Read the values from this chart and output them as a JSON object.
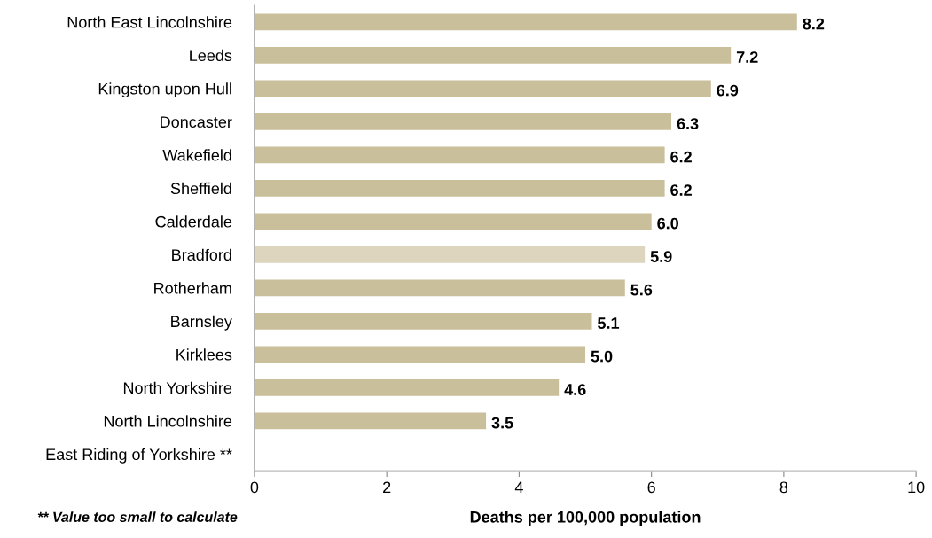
{
  "chart_data": {
    "type": "bar",
    "orientation": "horizontal",
    "categories": [
      "North East Lincolnshire",
      "Leeds",
      "Kingston upon Hull",
      "Doncaster",
      "Wakefield",
      "Sheffield",
      "Calderdale",
      "Bradford",
      "Rotherham",
      "Barnsley",
      "Kirklees",
      "North Yorkshire",
      "North Lincolnshire",
      "East Riding of Yorkshire **"
    ],
    "values": [
      8.2,
      7.2,
      6.9,
      6.3,
      6.2,
      6.2,
      6.0,
      5.9,
      5.6,
      5.1,
      5.0,
      4.6,
      3.5,
      null
    ],
    "value_labels": [
      "8.2",
      "7.2",
      "6.9",
      "6.3",
      "6.2",
      "6.2",
      "6.0",
      "5.9",
      "5.6",
      "5.1",
      "5.0",
      "4.6",
      "3.5",
      null
    ],
    "colors": [
      "#c9bf9a",
      "#c9bf9a",
      "#c9bf9a",
      "#c9bf9a",
      "#c9bf9a",
      "#c9bf9a",
      "#c9bf9a",
      "#ddd5bd",
      "#c9bf9a",
      "#c9bf9a",
      "#c9bf9a",
      "#c9bf9a",
      "#c9bf9a",
      "#c9bf9a"
    ],
    "xlim": [
      0,
      10
    ],
    "xticks": [
      0,
      2,
      4,
      6,
      8,
      10
    ],
    "xlabel": "Deaths per 100,000 population",
    "annotations": [
      "** Value too small to calculate"
    ]
  }
}
